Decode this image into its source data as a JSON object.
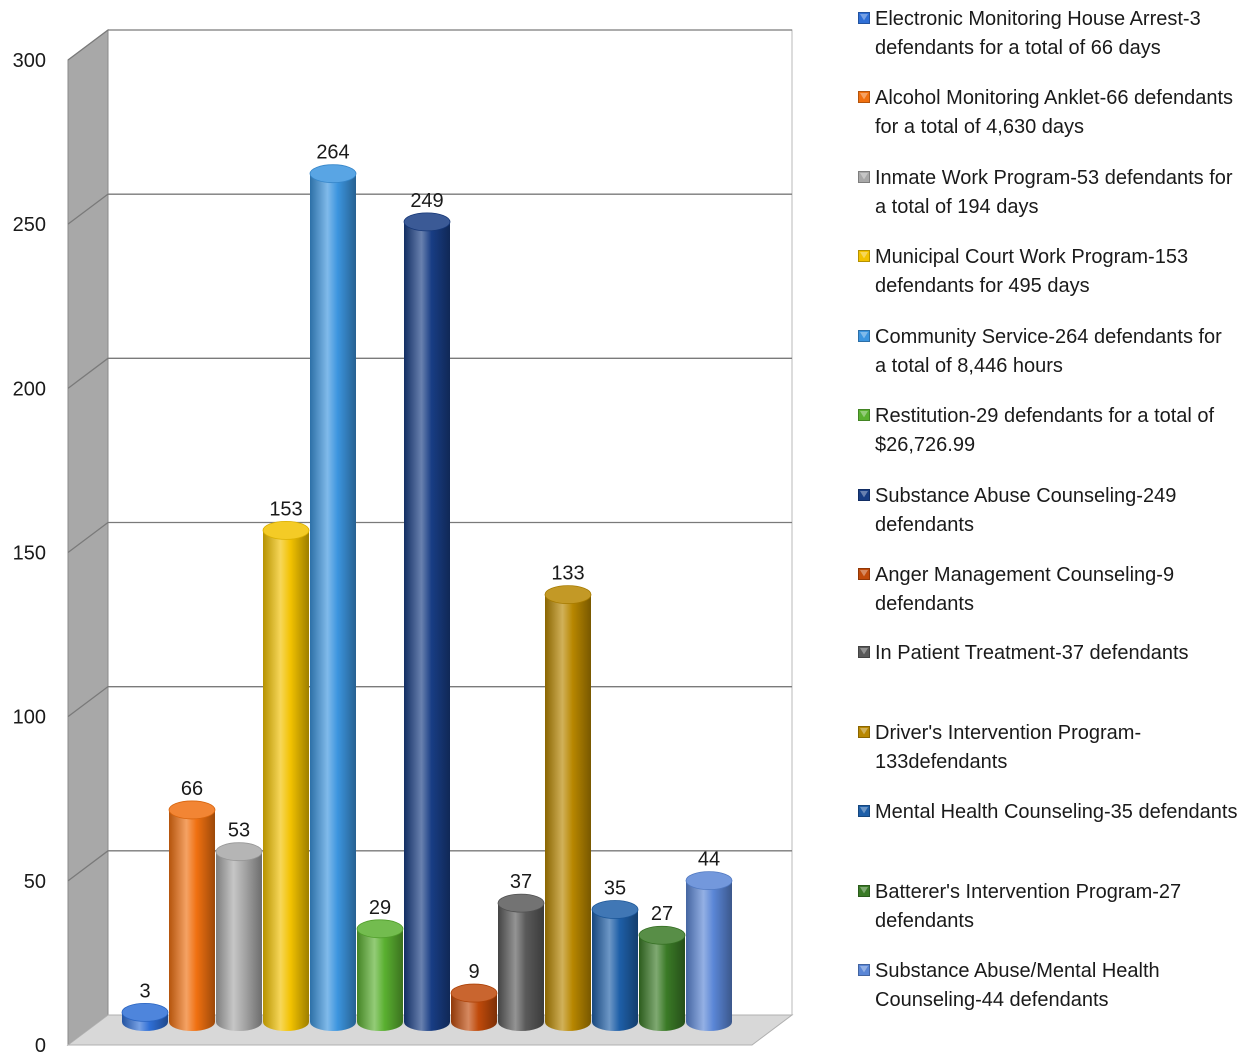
{
  "chart_data": {
    "type": "bar",
    "categories": [
      "Electronic Monitoring House Arrest-3 defendants for a total of 66 days",
      "Alcohol Monitoring Anklet-66 defendants for a total of 4,630 days",
      "Inmate Work Program-53 defendants for a total of 194 days",
      "Municipal Court Work Program-153 defendants for 495 days",
      "Community Service-264 defendants for a total of 8,446 hours",
      "Restitution-29 defendants for a total of $26,726.99",
      "Substance Abuse Counseling-249 defendants",
      "Anger Management Counseling-9 defendants",
      "In Patient Treatment-37 defendants",
      "Driver's Intervention Program-133defendants",
      "Mental Health Counseling-35 defendants",
      "Batterer's Intervention Program-27 defendants",
      "Substance Abuse/Mental Health Counseling-44 defendants"
    ],
    "values": [
      3,
      66,
      53,
      153,
      264,
      29,
      249,
      9,
      37,
      133,
      35,
      27,
      44
    ],
    "data_labels": [
      "3",
      "66",
      "53",
      "153",
      "264",
      "29",
      "249",
      "9",
      "37",
      "133",
      "35",
      "27",
      "44"
    ],
    "colors": [
      "#2f6fd6",
      "#f07010",
      "#a8a8a8",
      "#f2c200",
      "#3c95df",
      "#5ab030",
      "#183d84",
      "#c04a0a",
      "#5a5a5a",
      "#b88700",
      "#1e5fa8",
      "#3a7a26",
      "#5a86d6"
    ],
    "y_ticks": [
      "0",
      "50",
      "100",
      "150",
      "200",
      "250",
      "300"
    ],
    "ylim": [
      0,
      300
    ],
    "grid": true,
    "legend_position": "right",
    "title": "",
    "xlabel": "",
    "ylabel": ""
  },
  "legend": {
    "items": [
      {
        "text": "Electronic Monitoring House Arrest-3 defendants for a total of 66 days",
        "color": "#2f6fd6"
      },
      {
        "text": "Alcohol Monitoring Anklet-66 defendants for a total of 4,630 days",
        "color": "#f07010"
      },
      {
        "text": "Inmate Work Program-53 defendants for a total of 194 days",
        "color": "#a8a8a8"
      },
      {
        "text": "Municipal Court Work Program-153 defendants for 495 days",
        "color": "#f2c200"
      },
      {
        "text": "Community Service-264 defendants for a total of 8,446 hours",
        "color": "#3c95df"
      },
      {
        "text": "Restitution-29 defendants for a total of $26,726.99",
        "color": "#5ab030"
      },
      {
        "text": "Substance Abuse Counseling-249 defendants",
        "color": "#183d84"
      },
      {
        "text": "Anger Management Counseling-9 defendants",
        "color": "#c04a0a"
      },
      {
        "text": "In Patient Treatment-37 defendants",
        "color": "#5a5a5a"
      },
      {
        "text": "Driver's Intervention Program-133defendants",
        "color": "#b88700"
      },
      {
        "text": "Mental Health Counseling-35 defendants",
        "color": "#1e5fa8"
      },
      {
        "text": "Batterer's Intervention Program-27 defendants",
        "color": "#3a7a26"
      },
      {
        "text": "Substance Abuse/Mental Health Counseling-44 defendants",
        "color": "#5a86d6"
      }
    ]
  }
}
